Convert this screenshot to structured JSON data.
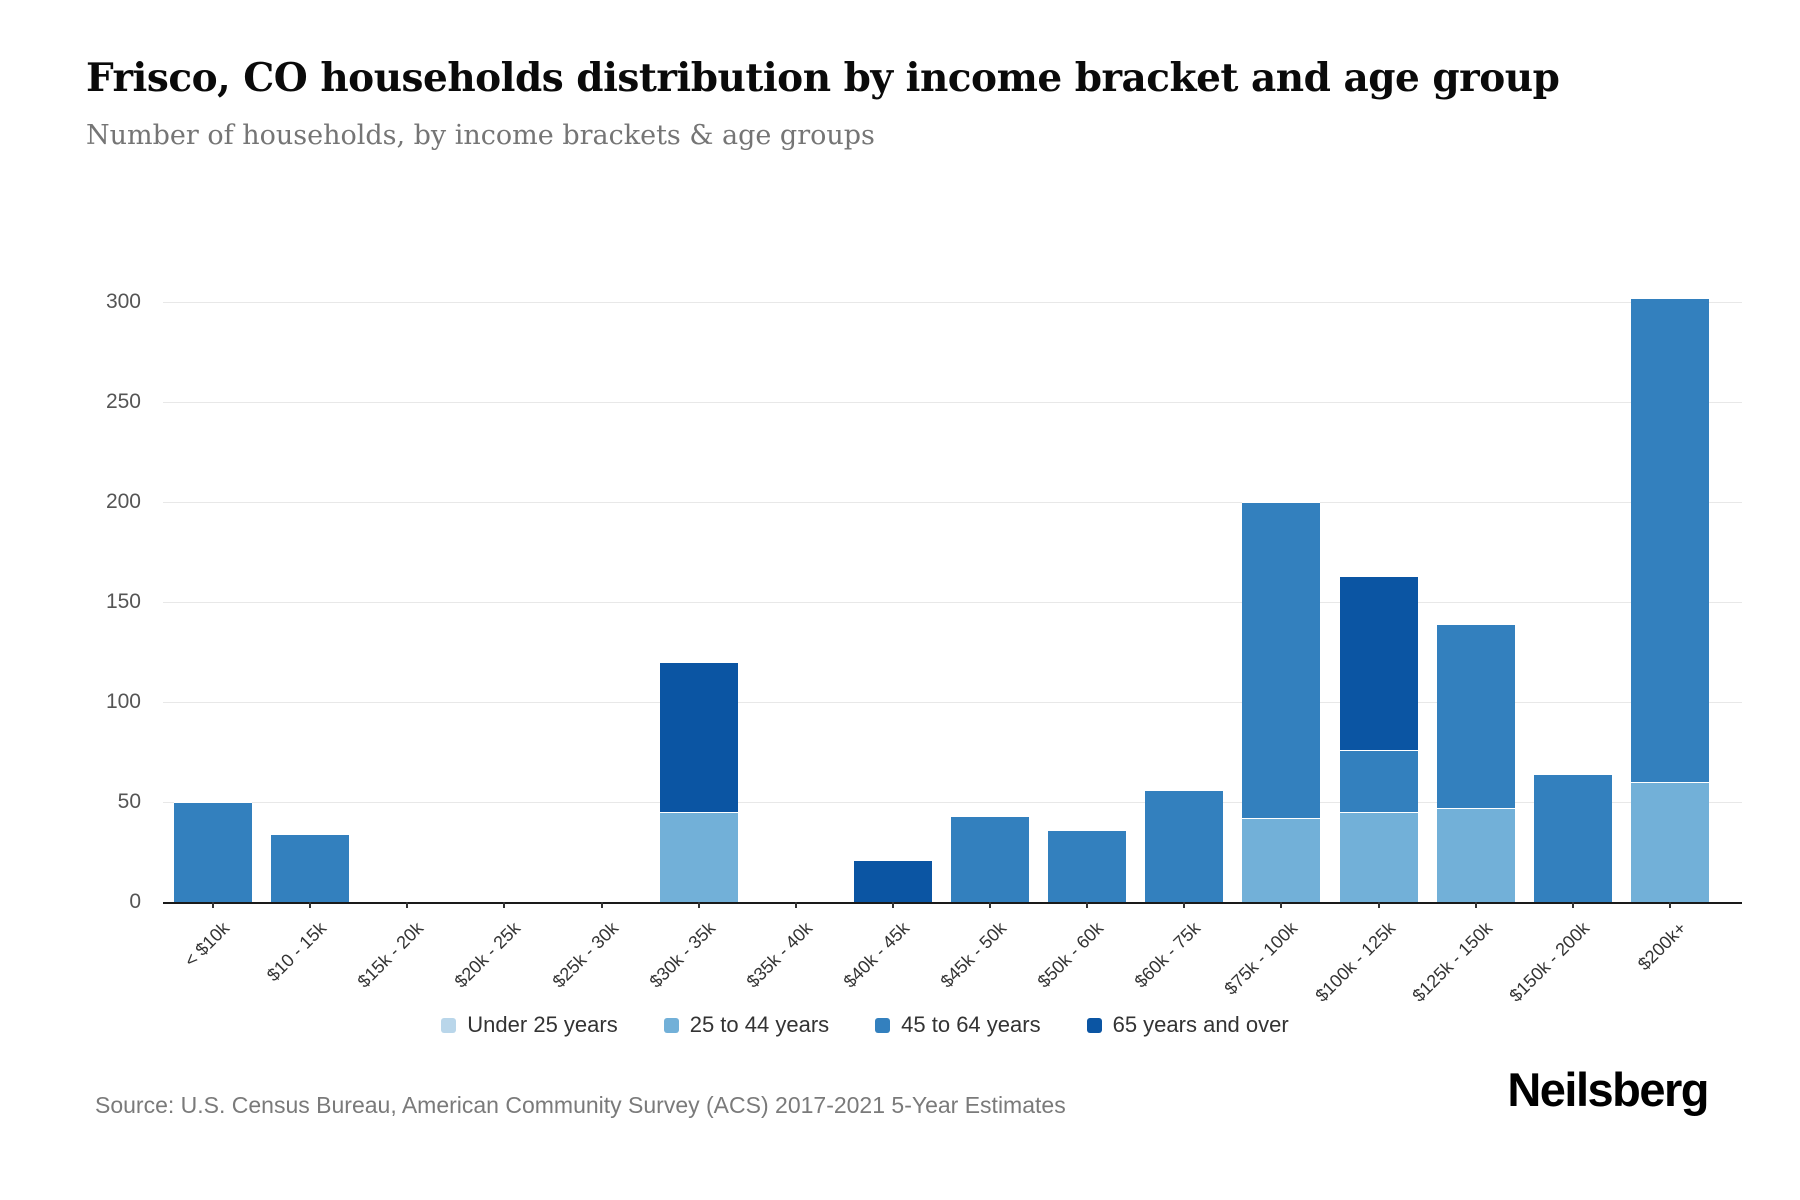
{
  "header": {
    "title": "Frisco, CO households distribution by income bracket and age group",
    "subtitle": "Number of households, by income brackets & age groups"
  },
  "chart_data": {
    "type": "bar",
    "stacked": true,
    "title": "Frisco, CO households distribution by income bracket and age group",
    "subtitle": "Number of households, by income brackets & age groups",
    "xlabel": "",
    "ylabel": "",
    "ylim": [
      0,
      300
    ],
    "yticks": [
      0,
      50,
      100,
      150,
      200,
      250,
      300
    ],
    "grid": true,
    "legend_position": "bottom",
    "categories": [
      "< $10k",
      "$10 - 15k",
      "$15k - 20k",
      "$20k - 25k",
      "$25k - 30k",
      "$30k - 35k",
      "$35k - 40k",
      "$40k - 45k",
      "$45k - 50k",
      "$50k - 60k",
      "$60k - 75k",
      "$75k - 100k",
      "$100k - 125k",
      "$125k - 150k",
      "$150k - 200k",
      "$200k+"
    ],
    "series": [
      {
        "name": "Under 25 years",
        "color": "#b9d6ea",
        "values": [
          0,
          0,
          0,
          0,
          0,
          0,
          0,
          0,
          0,
          0,
          0,
          0,
          0,
          0,
          0,
          0
        ]
      },
      {
        "name": "25 to 44 years",
        "color": "#72b0d8",
        "values": [
          0,
          0,
          0,
          0,
          0,
          45,
          0,
          0,
          0,
          0,
          0,
          42,
          45,
          47,
          0,
          60
        ]
      },
      {
        "name": "45 to 64 years",
        "color": "#3380be",
        "values": [
          50,
          34,
          0,
          0,
          0,
          0,
          0,
          0,
          43,
          36,
          56,
          158,
          31,
          92,
          64,
          242
        ]
      },
      {
        "name": "65 years and over",
        "color": "#0b55a3",
        "values": [
          0,
          0,
          0,
          0,
          0,
          75,
          0,
          21,
          0,
          0,
          0,
          0,
          87,
          0,
          0,
          0
        ]
      }
    ],
    "totals": [
      50,
      34,
      0,
      0,
      0,
      120,
      0,
      21,
      43,
      36,
      56,
      200,
      163,
      139,
      64,
      302
    ]
  },
  "footer": {
    "source": "Source: U.S. Census Bureau, American Community Survey (ACS) 2017-2021 5-Year Estimates",
    "logo": "Neilsberg"
  }
}
